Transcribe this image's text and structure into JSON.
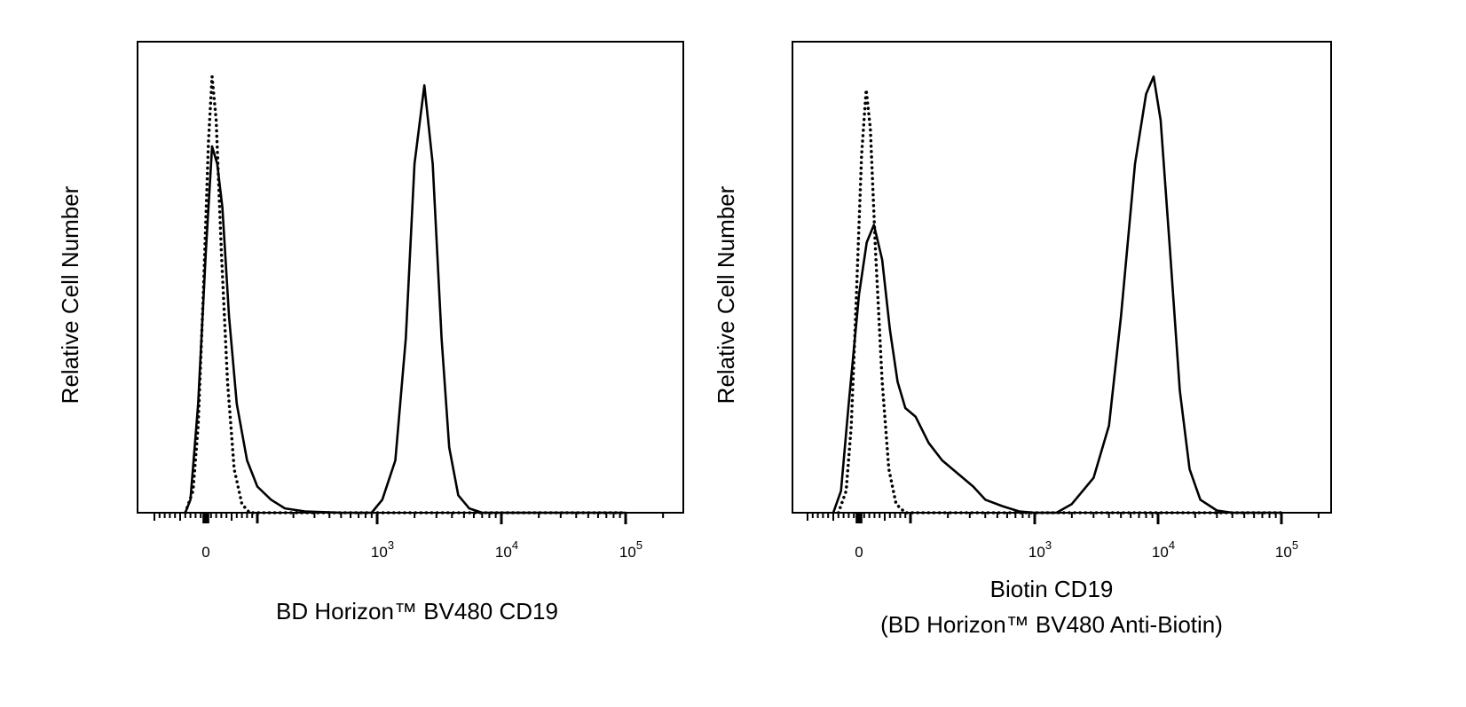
{
  "chart_data": [
    {
      "type": "line",
      "xlabel": [
        "BD Horizon™ BV480 CD19"
      ],
      "ylabel": "Relative Cell Number",
      "x_scale": "biexponential (logicle)",
      "xlim": [
        -100,
        200000
      ],
      "ylim": [
        0,
        108
      ],
      "grid": false,
      "legend": "none",
      "x_ticks": [
        {
          "value": 0,
          "base": "0",
          "exp": ""
        },
        {
          "value": 1000,
          "base": "10",
          "exp": "3"
        },
        {
          "value": 10000,
          "base": "10",
          "exp": "4"
        },
        {
          "value": 100000,
          "base": "10",
          "exp": "5"
        }
      ],
      "series": [
        {
          "style": "dotted",
          "color": "#000000",
          "points": [
            [
              -40,
              0
            ],
            [
              -25,
              5
            ],
            [
              -15,
              20
            ],
            [
              -5,
              50
            ],
            [
              5,
              85
            ],
            [
              12,
              100
            ],
            [
              20,
              90
            ],
            [
              30,
              60
            ],
            [
              42,
              30
            ],
            [
              55,
              10
            ],
            [
              70,
              2
            ],
            [
              85,
              0
            ],
            [
              100000,
              0
            ]
          ]
        },
        {
          "style": "solid",
          "color": "#000000",
          "points": [
            [
              -40,
              0
            ],
            [
              -30,
              3
            ],
            [
              -15,
              25
            ],
            [
              0,
              60
            ],
            [
              12,
              84
            ],
            [
              22,
              80
            ],
            [
              32,
              70
            ],
            [
              45,
              45
            ],
            [
              60,
              25
            ],
            [
              80,
              12
            ],
            [
              100,
              6
            ],
            [
              130,
              3
            ],
            [
              170,
              1
            ],
            [
              250,
              0.3
            ],
            [
              500,
              0
            ],
            [
              900,
              0
            ],
            [
              1100,
              3
            ],
            [
              1400,
              12
            ],
            [
              1700,
              40
            ],
            [
              2000,
              80
            ],
            [
              2400,
              98
            ],
            [
              2800,
              80
            ],
            [
              3300,
              40
            ],
            [
              3800,
              15
            ],
            [
              4500,
              4
            ],
            [
              5500,
              1
            ],
            [
              7000,
              0
            ],
            [
              100000,
              0
            ]
          ]
        }
      ]
    },
    {
      "type": "line",
      "xlabel": [
        "Biotin CD19",
        "(BD Horizon™ BV480 Anti-Biotin)"
      ],
      "ylabel": "Relative Cell Number",
      "x_scale": "biexponential (logicle)",
      "xlim": [
        -100,
        200000
      ],
      "ylim": [
        0,
        108
      ],
      "grid": false,
      "legend": "none",
      "x_ticks": [
        {
          "value": 0,
          "base": "0",
          "exp": ""
        },
        {
          "value": 1000,
          "base": "10",
          "exp": "3"
        },
        {
          "value": 10000,
          "base": "10",
          "exp": "4"
        },
        {
          "value": 100000,
          "base": "10",
          "exp": "5"
        }
      ],
      "series": [
        {
          "style": "dotted",
          "color": "#000000",
          "points": [
            [
              -40,
              0
            ],
            [
              -25,
              5
            ],
            [
              -15,
              20
            ],
            [
              -5,
              50
            ],
            [
              5,
              82
            ],
            [
              14,
              97
            ],
            [
              22,
              88
            ],
            [
              32,
              60
            ],
            [
              45,
              30
            ],
            [
              58,
              10
            ],
            [
              72,
              2
            ],
            [
              90,
              0
            ],
            [
              100000,
              0
            ]
          ]
        },
        {
          "style": "solid",
          "color": "#000000",
          "points": [
            [
              -50,
              0
            ],
            [
              -35,
              5
            ],
            [
              -20,
              25
            ],
            [
              0,
              50
            ],
            [
              15,
              62
            ],
            [
              29,
              66
            ],
            [
              45,
              58
            ],
            [
              60,
              42
            ],
            [
              75,
              30
            ],
            [
              90,
              24
            ],
            [
              110,
              22
            ],
            [
              140,
              16
            ],
            [
              180,
              12
            ],
            [
              240,
              9
            ],
            [
              320,
              6
            ],
            [
              400,
              3
            ],
            [
              550,
              1.5
            ],
            [
              750,
              0.3
            ],
            [
              1000,
              0
            ],
            [
              1500,
              0
            ],
            [
              2000,
              2
            ],
            [
              3000,
              8
            ],
            [
              4000,
              20
            ],
            [
              5000,
              45
            ],
            [
              6500,
              80
            ],
            [
              8000,
              96
            ],
            [
              9200,
              100
            ],
            [
              10500,
              90
            ],
            [
              12500,
              60
            ],
            [
              15000,
              28
            ],
            [
              18000,
              10
            ],
            [
              22000,
              3
            ],
            [
              30000,
              0.5
            ],
            [
              40000,
              0
            ],
            [
              100000,
              0
            ]
          ]
        }
      ]
    }
  ]
}
